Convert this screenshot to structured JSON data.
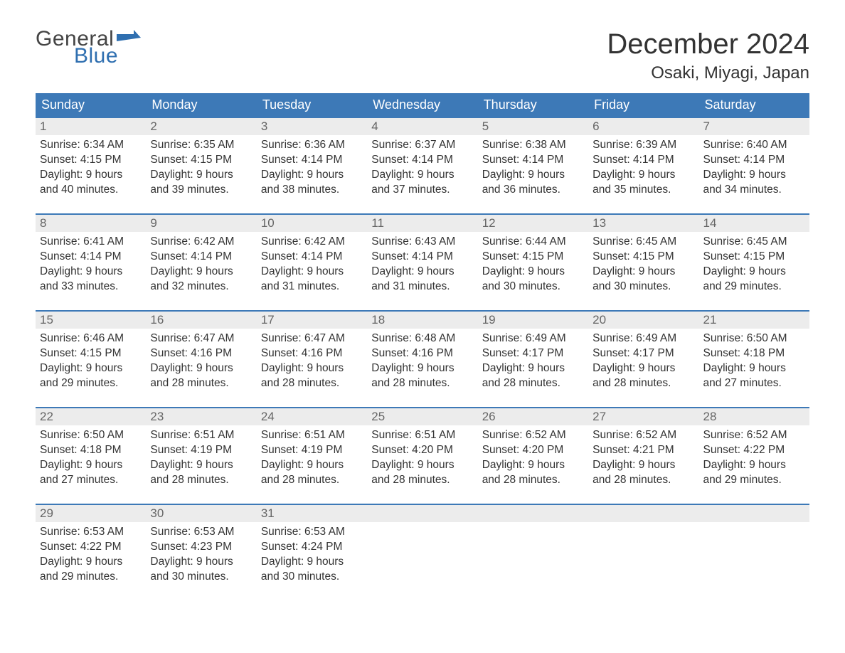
{
  "logo": {
    "text1": "General",
    "text2": "Blue",
    "flag_color": "#2f6fb0"
  },
  "title": {
    "month": "December 2024",
    "location": "Osaki, Miyagi, Japan"
  },
  "colors": {
    "header_bg": "#3d79b7",
    "header_text": "#ffffff",
    "daynum_bg": "#ececec",
    "daynum_text": "#666666",
    "body_text": "#333333",
    "week_border": "#3d79b7"
  },
  "weekdays": [
    "Sunday",
    "Monday",
    "Tuesday",
    "Wednesday",
    "Thursday",
    "Friday",
    "Saturday"
  ],
  "weeks": [
    [
      {
        "n": "1",
        "sr": "Sunrise: 6:34 AM",
        "ss": "Sunset: 4:15 PM",
        "d1": "Daylight: 9 hours",
        "d2": "and 40 minutes."
      },
      {
        "n": "2",
        "sr": "Sunrise: 6:35 AM",
        "ss": "Sunset: 4:15 PM",
        "d1": "Daylight: 9 hours",
        "d2": "and 39 minutes."
      },
      {
        "n": "3",
        "sr": "Sunrise: 6:36 AM",
        "ss": "Sunset: 4:14 PM",
        "d1": "Daylight: 9 hours",
        "d2": "and 38 minutes."
      },
      {
        "n": "4",
        "sr": "Sunrise: 6:37 AM",
        "ss": "Sunset: 4:14 PM",
        "d1": "Daylight: 9 hours",
        "d2": "and 37 minutes."
      },
      {
        "n": "5",
        "sr": "Sunrise: 6:38 AM",
        "ss": "Sunset: 4:14 PM",
        "d1": "Daylight: 9 hours",
        "d2": "and 36 minutes."
      },
      {
        "n": "6",
        "sr": "Sunrise: 6:39 AM",
        "ss": "Sunset: 4:14 PM",
        "d1": "Daylight: 9 hours",
        "d2": "and 35 minutes."
      },
      {
        "n": "7",
        "sr": "Sunrise: 6:40 AM",
        "ss": "Sunset: 4:14 PM",
        "d1": "Daylight: 9 hours",
        "d2": "and 34 minutes."
      }
    ],
    [
      {
        "n": "8",
        "sr": "Sunrise: 6:41 AM",
        "ss": "Sunset: 4:14 PM",
        "d1": "Daylight: 9 hours",
        "d2": "and 33 minutes."
      },
      {
        "n": "9",
        "sr": "Sunrise: 6:42 AM",
        "ss": "Sunset: 4:14 PM",
        "d1": "Daylight: 9 hours",
        "d2": "and 32 minutes."
      },
      {
        "n": "10",
        "sr": "Sunrise: 6:42 AM",
        "ss": "Sunset: 4:14 PM",
        "d1": "Daylight: 9 hours",
        "d2": "and 31 minutes."
      },
      {
        "n": "11",
        "sr": "Sunrise: 6:43 AM",
        "ss": "Sunset: 4:14 PM",
        "d1": "Daylight: 9 hours",
        "d2": "and 31 minutes."
      },
      {
        "n": "12",
        "sr": "Sunrise: 6:44 AM",
        "ss": "Sunset: 4:15 PM",
        "d1": "Daylight: 9 hours",
        "d2": "and 30 minutes."
      },
      {
        "n": "13",
        "sr": "Sunrise: 6:45 AM",
        "ss": "Sunset: 4:15 PM",
        "d1": "Daylight: 9 hours",
        "d2": "and 30 minutes."
      },
      {
        "n": "14",
        "sr": "Sunrise: 6:45 AM",
        "ss": "Sunset: 4:15 PM",
        "d1": "Daylight: 9 hours",
        "d2": "and 29 minutes."
      }
    ],
    [
      {
        "n": "15",
        "sr": "Sunrise: 6:46 AM",
        "ss": "Sunset: 4:15 PM",
        "d1": "Daylight: 9 hours",
        "d2": "and 29 minutes."
      },
      {
        "n": "16",
        "sr": "Sunrise: 6:47 AM",
        "ss": "Sunset: 4:16 PM",
        "d1": "Daylight: 9 hours",
        "d2": "and 28 minutes."
      },
      {
        "n": "17",
        "sr": "Sunrise: 6:47 AM",
        "ss": "Sunset: 4:16 PM",
        "d1": "Daylight: 9 hours",
        "d2": "and 28 minutes."
      },
      {
        "n": "18",
        "sr": "Sunrise: 6:48 AM",
        "ss": "Sunset: 4:16 PM",
        "d1": "Daylight: 9 hours",
        "d2": "and 28 minutes."
      },
      {
        "n": "19",
        "sr": "Sunrise: 6:49 AM",
        "ss": "Sunset: 4:17 PM",
        "d1": "Daylight: 9 hours",
        "d2": "and 28 minutes."
      },
      {
        "n": "20",
        "sr": "Sunrise: 6:49 AM",
        "ss": "Sunset: 4:17 PM",
        "d1": "Daylight: 9 hours",
        "d2": "and 28 minutes."
      },
      {
        "n": "21",
        "sr": "Sunrise: 6:50 AM",
        "ss": "Sunset: 4:18 PM",
        "d1": "Daylight: 9 hours",
        "d2": "and 27 minutes."
      }
    ],
    [
      {
        "n": "22",
        "sr": "Sunrise: 6:50 AM",
        "ss": "Sunset: 4:18 PM",
        "d1": "Daylight: 9 hours",
        "d2": "and 27 minutes."
      },
      {
        "n": "23",
        "sr": "Sunrise: 6:51 AM",
        "ss": "Sunset: 4:19 PM",
        "d1": "Daylight: 9 hours",
        "d2": "and 28 minutes."
      },
      {
        "n": "24",
        "sr": "Sunrise: 6:51 AM",
        "ss": "Sunset: 4:19 PM",
        "d1": "Daylight: 9 hours",
        "d2": "and 28 minutes."
      },
      {
        "n": "25",
        "sr": "Sunrise: 6:51 AM",
        "ss": "Sunset: 4:20 PM",
        "d1": "Daylight: 9 hours",
        "d2": "and 28 minutes."
      },
      {
        "n": "26",
        "sr": "Sunrise: 6:52 AM",
        "ss": "Sunset: 4:20 PM",
        "d1": "Daylight: 9 hours",
        "d2": "and 28 minutes."
      },
      {
        "n": "27",
        "sr": "Sunrise: 6:52 AM",
        "ss": "Sunset: 4:21 PM",
        "d1": "Daylight: 9 hours",
        "d2": "and 28 minutes."
      },
      {
        "n": "28",
        "sr": "Sunrise: 6:52 AM",
        "ss": "Sunset: 4:22 PM",
        "d1": "Daylight: 9 hours",
        "d2": "and 29 minutes."
      }
    ],
    [
      {
        "n": "29",
        "sr": "Sunrise: 6:53 AM",
        "ss": "Sunset: 4:22 PM",
        "d1": "Daylight: 9 hours",
        "d2": "and 29 minutes."
      },
      {
        "n": "30",
        "sr": "Sunrise: 6:53 AM",
        "ss": "Sunset: 4:23 PM",
        "d1": "Daylight: 9 hours",
        "d2": "and 30 minutes."
      },
      {
        "n": "31",
        "sr": "Sunrise: 6:53 AM",
        "ss": "Sunset: 4:24 PM",
        "d1": "Daylight: 9 hours",
        "d2": "and 30 minutes."
      },
      {
        "n": "",
        "empty": true
      },
      {
        "n": "",
        "empty": true
      },
      {
        "n": "",
        "empty": true
      },
      {
        "n": "",
        "empty": true
      }
    ]
  ]
}
